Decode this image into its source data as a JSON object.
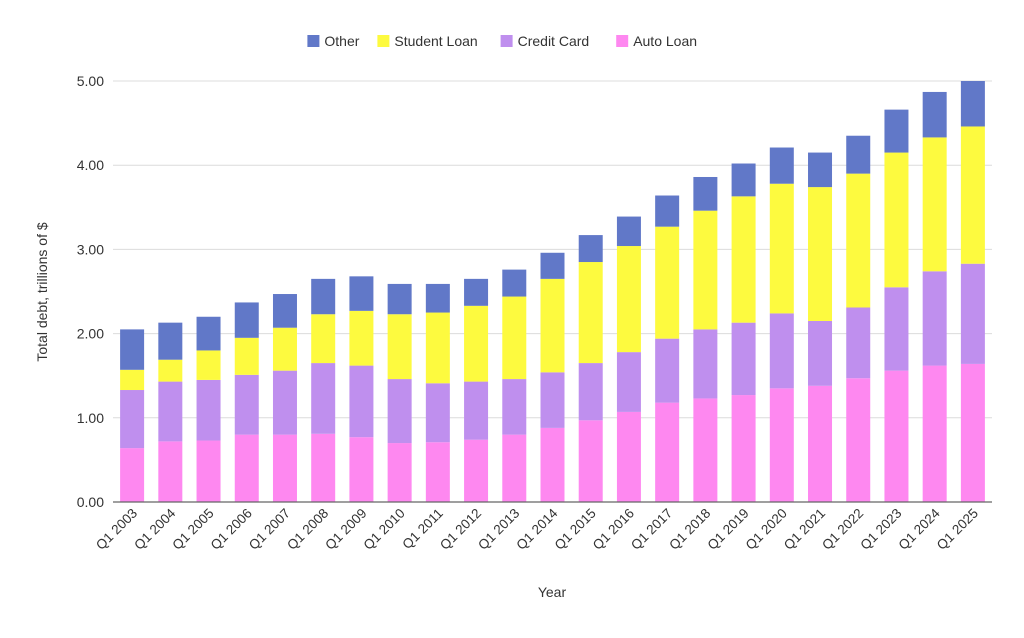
{
  "chart_data": {
    "type": "bar",
    "stacked": true,
    "title": "",
    "xlabel": "Year",
    "ylabel": "Total debt, trillions of $",
    "ylim": [
      0,
      5
    ],
    "yticks": [
      "0.00",
      "1.00",
      "2.00",
      "3.00",
      "4.00",
      "5.00"
    ],
    "grid": true,
    "legend_position": "top",
    "categories": [
      "Q1 2003",
      "Q1 2004",
      "Q1 2005",
      "Q1 2006",
      "Q1 2007",
      "Q1 2008",
      "Q1 2009",
      "Q1 2010",
      "Q1 2011",
      "Q1 2012",
      "Q1 2013",
      "Q1 2014",
      "Q1 2015",
      "Q1 2016",
      "Q1 2017",
      "Q1 2018",
      "Q1 2019",
      "Q1 2020",
      "Q1 2021",
      "Q1 2022",
      "Q1 2023",
      "Q1 2024",
      "Q1 2025"
    ],
    "series": [
      {
        "name": "Auto Loan",
        "color": "#fe88f0",
        "values": [
          0.64,
          0.72,
          0.73,
          0.8,
          0.8,
          0.81,
          0.77,
          0.7,
          0.71,
          0.74,
          0.8,
          0.88,
          0.97,
          1.07,
          1.18,
          1.23,
          1.27,
          1.35,
          1.38,
          1.47,
          1.56,
          1.62,
          1.64
        ]
      },
      {
        "name": "Credit Card",
        "color": "#bf8fee",
        "values": [
          0.69,
          0.71,
          0.72,
          0.71,
          0.76,
          0.84,
          0.85,
          0.76,
          0.7,
          0.69,
          0.66,
          0.66,
          0.68,
          0.71,
          0.76,
          0.82,
          0.86,
          0.89,
          0.77,
          0.84,
          0.99,
          1.12,
          1.19
        ]
      },
      {
        "name": "Student Loan",
        "color": "#fdfa3f",
        "values": [
          0.24,
          0.26,
          0.35,
          0.44,
          0.51,
          0.58,
          0.65,
          0.77,
          0.84,
          0.9,
          0.98,
          1.11,
          1.2,
          1.26,
          1.33,
          1.41,
          1.5,
          1.54,
          1.59,
          1.59,
          1.6,
          1.59,
          1.63
        ]
      },
      {
        "name": "Other",
        "color": "#6178c8",
        "values": [
          0.48,
          0.44,
          0.4,
          0.42,
          0.4,
          0.42,
          0.41,
          0.36,
          0.34,
          0.32,
          0.32,
          0.31,
          0.32,
          0.35,
          0.37,
          0.4,
          0.39,
          0.43,
          0.41,
          0.45,
          0.51,
          0.54,
          0.54
        ]
      }
    ],
    "legend_order": [
      "Other",
      "Student Loan",
      "Credit Card",
      "Auto Loan"
    ]
  }
}
